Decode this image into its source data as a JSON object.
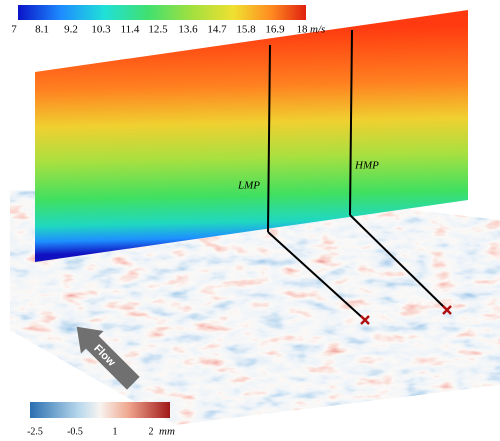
{
  "velocity_colorbar": {
    "ticks": [
      "7",
      "8.1",
      "9.2",
      "10.3",
      "11.4",
      "12.5",
      "13.6",
      "14.7",
      "15.8",
      "16.9",
      "18"
    ],
    "unit": "m/s"
  },
  "height_colorbar": {
    "ticks": [
      "-2.5",
      "-0.5",
      "1",
      "2"
    ],
    "unit": "mm"
  },
  "probes": [
    {
      "label": "LMP"
    },
    {
      "label": "HMP"
    }
  ],
  "flow_label": "Flow"
}
